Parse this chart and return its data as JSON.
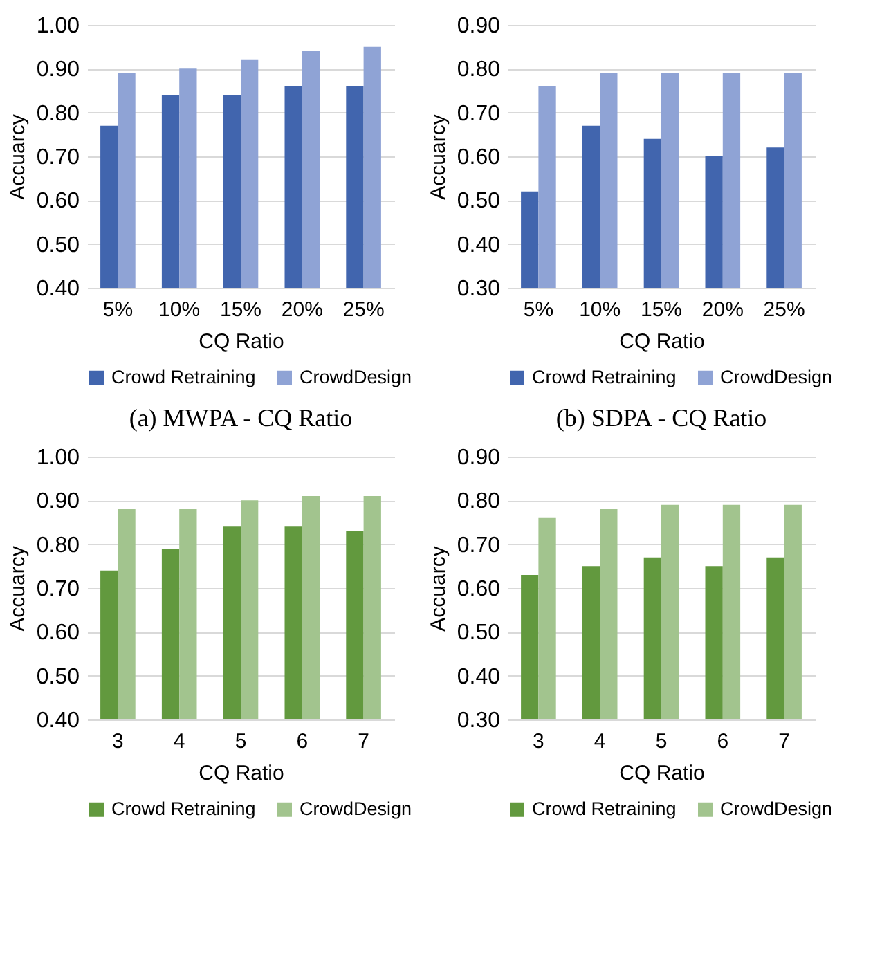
{
  "chart_data": [
    {
      "type": "bar",
      "title": "(a) MWPA - CQ Ratio",
      "xlabel": "CQ Ratio",
      "ylabel": "Accuarcy",
      "categories": [
        "5%",
        "10%",
        "15%",
        "20%",
        "25%"
      ],
      "series": [
        {
          "name": "Crowd Retraining",
          "color": "#4165ae",
          "values": [
            0.77,
            0.84,
            0.84,
            0.86,
            0.86
          ]
        },
        {
          "name": "CrowdDesign",
          "color": "#8fa3d5",
          "values": [
            0.89,
            0.9,
            0.92,
            0.94,
            0.95
          ]
        }
      ],
      "ylim": [
        0.4,
        1.0
      ],
      "yticks": [
        {
          "value": 0.4,
          "label": "0.40"
        },
        {
          "value": 0.5,
          "label": "0.50"
        },
        {
          "value": 0.6,
          "label": "0.60"
        },
        {
          "value": 0.7,
          "label": "0.70"
        },
        {
          "value": 0.8,
          "label": "0.80"
        },
        {
          "value": 0.9,
          "label": "0.90"
        },
        {
          "value": 1.0,
          "label": "1.00"
        }
      ],
      "grid": "y",
      "legend": "bottom"
    },
    {
      "type": "bar",
      "title": "(b) SDPA - CQ Ratio",
      "xlabel": "CQ Ratio",
      "ylabel": "Accuarcy",
      "categories": [
        "5%",
        "10%",
        "15%",
        "20%",
        "25%"
      ],
      "series": [
        {
          "name": "Crowd Retraining",
          "color": "#4165ae",
          "values": [
            0.52,
            0.67,
            0.64,
            0.6,
            0.62
          ]
        },
        {
          "name": "CrowdDesign",
          "color": "#8fa3d5",
          "values": [
            0.76,
            0.79,
            0.79,
            0.79,
            0.79
          ]
        }
      ],
      "ylim": [
        0.3,
        0.9
      ],
      "yticks": [
        {
          "value": 0.3,
          "label": "0.30"
        },
        {
          "value": 0.4,
          "label": "0.40"
        },
        {
          "value": 0.5,
          "label": "0.50"
        },
        {
          "value": 0.6,
          "label": "0.60"
        },
        {
          "value": 0.7,
          "label": "0.70"
        },
        {
          "value": 0.8,
          "label": "0.80"
        },
        {
          "value": 0.9,
          "label": "0.90"
        }
      ],
      "grid": "y",
      "legend": "bottom"
    },
    {
      "type": "bar",
      "xlabel": "CQ Ratio",
      "ylabel": "Accuarcy",
      "categories": [
        "3",
        "4",
        "5",
        "6",
        "7"
      ],
      "series": [
        {
          "name": "Crowd Retraining",
          "color": "#62993e",
          "values": [
            0.74,
            0.79,
            0.84,
            0.84,
            0.83
          ]
        },
        {
          "name": "CrowdDesign",
          "color": "#a2c48e",
          "values": [
            0.88,
            0.88,
            0.9,
            0.91,
            0.91
          ]
        }
      ],
      "ylim": [
        0.4,
        1.0
      ],
      "yticks": [
        {
          "value": 0.4,
          "label": "0.40"
        },
        {
          "value": 0.5,
          "label": "0.50"
        },
        {
          "value": 0.6,
          "label": "0.60"
        },
        {
          "value": 0.7,
          "label": "0.70"
        },
        {
          "value": 0.8,
          "label": "0.80"
        },
        {
          "value": 0.9,
          "label": "0.90"
        },
        {
          "value": 1.0,
          "label": "1.00"
        }
      ],
      "grid": "y",
      "legend": "bottom"
    },
    {
      "type": "bar",
      "xlabel": "CQ Ratio",
      "ylabel": "Accuarcy",
      "categories": [
        "3",
        "4",
        "5",
        "6",
        "7"
      ],
      "series": [
        {
          "name": "Crowd Retraining",
          "color": "#62993e",
          "values": [
            0.63,
            0.65,
            0.67,
            0.65,
            0.67
          ]
        },
        {
          "name": "CrowdDesign",
          "color": "#a2c48e",
          "values": [
            0.76,
            0.78,
            0.79,
            0.79,
            0.79
          ]
        }
      ],
      "ylim": [
        0.3,
        0.9
      ],
      "yticks": [
        {
          "value": 0.3,
          "label": "0.30"
        },
        {
          "value": 0.4,
          "label": "0.40"
        },
        {
          "value": 0.5,
          "label": "0.50"
        },
        {
          "value": 0.6,
          "label": "0.60"
        },
        {
          "value": 0.7,
          "label": "0.70"
        },
        {
          "value": 0.8,
          "label": "0.80"
        },
        {
          "value": 0.9,
          "label": "0.90"
        }
      ],
      "grid": "y",
      "legend": "bottom"
    }
  ]
}
